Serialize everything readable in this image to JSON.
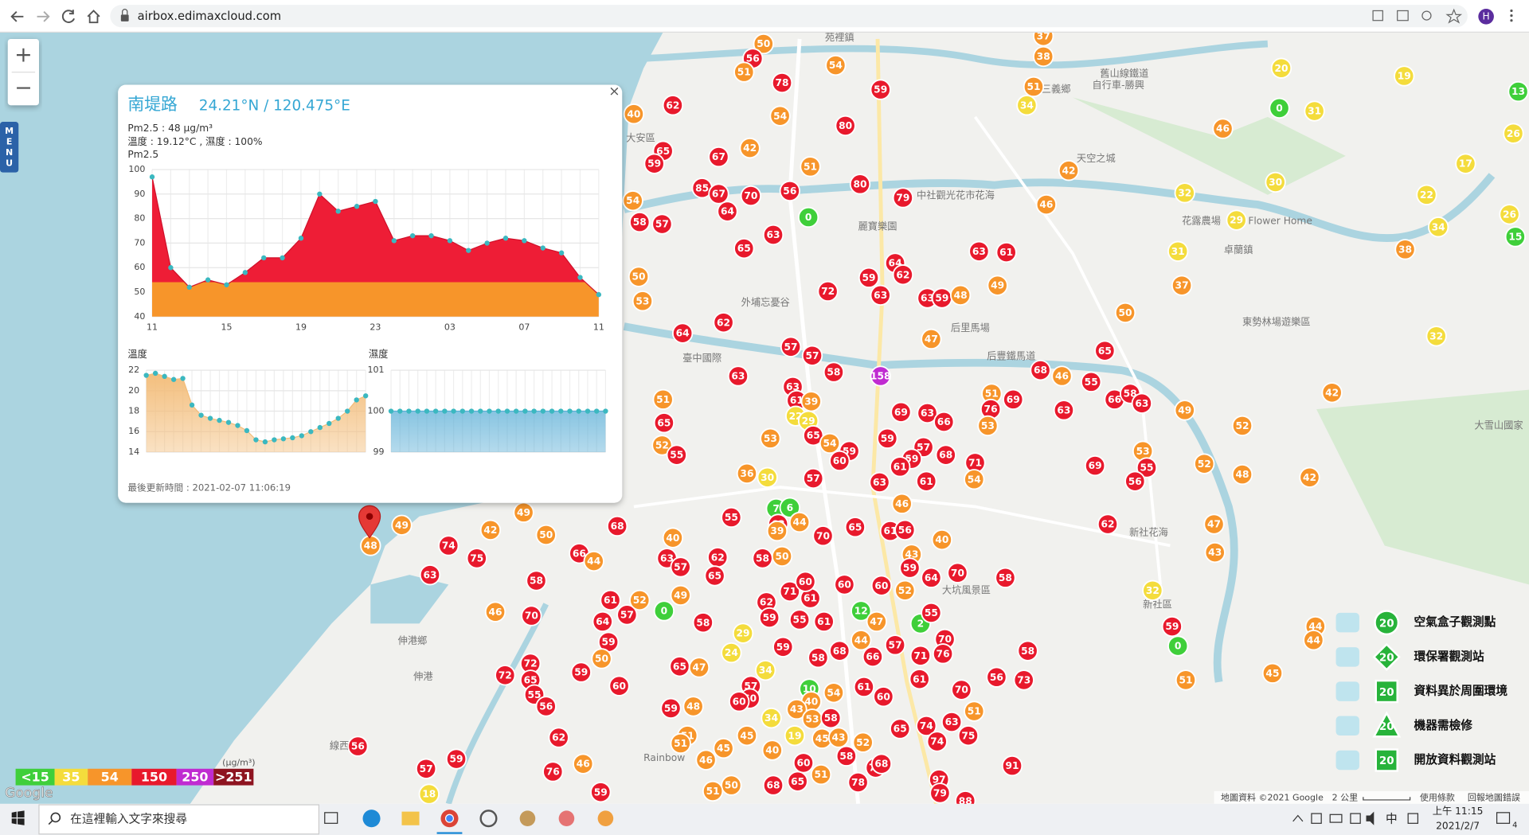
{
  "browser": {
    "url": "airbox.edimaxcloud.com",
    "avatar": "H"
  },
  "map": {
    "zoom_in": "+",
    "zoom_out": "−",
    "menu": "MENU",
    "logo": "Google",
    "attribution": "地圖資料 ©2021 Google",
    "distance": "2 公里",
    "terms": "使用條款",
    "report": "回報地圖錯誤",
    "places": [
      "苑裡鎮",
      "大安區",
      "麗寶樂園",
      "中社觀光花市花海",
      "外埔忘憂谷",
      "后里馬場",
      "后豐鐵馬道",
      "新社花海",
      "大坑風景區",
      "伸港鄉",
      "伸港",
      "線西",
      "Rainbow",
      "卓蘭鎮",
      "東勢林場遊樂區",
      "大雪山國家",
      "舊山線鐵道",
      "自行車-勝興",
      "三義鄉",
      "天空之城",
      "花露農場",
      "Flower Home",
      "新社區",
      "臺中國際"
    ],
    "scale": {
      "unit": "(μg/m³)",
      "levels": [
        {
          "value": 15,
          "label": "<15",
          "color": "#3fcf3a"
        },
        {
          "value": 35,
          "label": "35",
          "color": "#f4dc3c"
        },
        {
          "value": 54,
          "label": "54",
          "color": "#f7952a"
        },
        {
          "value": 150,
          "label": "150",
          "color": "#e8192c"
        },
        {
          "value": 250,
          "label": "250",
          "color": "#c02bd1"
        },
        {
          "value": 251,
          "label": ">251",
          "color": "#8e1420"
        }
      ]
    },
    "legend_icon": "20",
    "legend": [
      "空氣盒子觀測點",
      "環保署觀測站",
      "資料異於周圍環境",
      "機器需檢修",
      "開放資料觀測站"
    ],
    "markers": [
      50,
      56,
      51,
      54,
      78,
      59,
      37,
      38,
      51,
      34,
      20,
      0,
      31,
      19,
      13,
      26,
      62,
      40,
      54,
      80,
      65,
      59,
      67,
      42,
      51,
      80,
      79,
      85,
      67,
      64,
      70,
      56,
      0,
      42,
      46,
      30,
      32,
      46,
      29,
      17,
      22,
      26,
      34,
      38,
      15,
      54,
      58,
      57,
      63,
      65,
      64,
      59,
      62,
      72,
      63,
      63,
      61,
      31,
      37,
      49,
      63,
      59,
      48,
      50,
      53,
      62,
      64,
      50,
      47,
      32,
      57,
      57,
      58,
      158,
      63,
      68,
      46,
      55,
      65,
      42,
      63,
      61,
      39,
      51,
      22,
      29,
      65,
      69,
      63,
      66,
      51,
      69,
      76,
      63,
      66,
      58,
      63,
      49,
      53,
      59,
      52,
      55,
      53,
      65,
      54,
      59,
      57,
      68,
      71,
      59,
      60,
      61,
      69,
      53,
      55,
      56,
      52,
      52,
      48,
      42,
      36,
      30,
      57,
      63,
      61,
      54,
      46,
      48,
      49,
      42,
      49,
      50,
      74,
      75,
      63,
      58,
      66,
      44,
      68,
      55,
      7,
      6,
      63,
      39,
      44,
      70,
      65,
      61,
      56,
      40,
      43,
      59,
      70,
      64,
      58,
      62,
      47,
      43,
      32,
      40,
      63,
      57,
      62,
      65,
      58,
      50,
      46,
      70,
      61,
      57,
      52,
      49,
      0,
      58,
      64,
      59,
      50,
      71,
      61,
      60,
      60,
      60,
      52,
      2,
      55,
      12,
      47,
      62,
      59,
      55,
      61,
      29,
      59,
      44,
      57,
      70,
      76,
      71,
      68,
      58,
      66,
      58,
      59,
      0,
      44,
      44,
      45,
      72,
      72,
      65,
      55,
      56,
      59,
      60,
      65,
      47,
      24,
      34,
      57,
      60,
      60,
      10,
      54,
      40,
      61,
      60,
      61,
      70,
      56,
      73,
      51,
      48,
      59,
      43,
      53,
      58,
      34,
      65,
      74,
      63,
      51,
      62,
      59,
      57,
      56,
      76,
      51,
      51,
      45,
      19,
      45,
      43,
      52,
      74,
      75,
      46,
      45,
      40,
      60,
      58,
      78,
      77,
      68,
      91,
      46,
      50,
      68,
      65,
      51,
      97,
      18,
      59,
      51,
      79,
      88
    ]
  },
  "popup": {
    "title": "南堤路",
    "coords": "24.21°N / 120.475°E",
    "close": "×",
    "pm_line": "Pm2.5 : 48 μg/m³",
    "weather_line": "溫度 : 19.12°C , 濕度 : 100%",
    "updated": "最後更新時間 : 2021-02-07 11:06:19"
  },
  "chart_data": [
    {
      "type": "area",
      "title": "Pm2.5",
      "categories": [
        "11",
        null,
        null,
        null,
        "15",
        null,
        null,
        null,
        "19",
        null,
        null,
        null,
        "23",
        null,
        null,
        null,
        "03",
        null,
        null,
        null,
        "07",
        null,
        null,
        null,
        "11"
      ],
      "values": [
        97,
        60,
        52,
        55,
        53,
        58,
        64,
        64,
        72,
        90,
        83,
        85,
        87,
        71,
        73,
        73,
        71,
        67,
        70,
        72,
        71,
        68,
        66,
        56,
        49
      ],
      "ylim": [
        40,
        100
      ],
      "yticks": [
        40,
        50,
        60,
        70,
        80,
        90,
        100
      ],
      "grid": true,
      "color": "#ee1d36",
      "low_color": "#f7952a",
      "marker_color": "#3bb8c0"
    },
    {
      "type": "area",
      "title": "溫度",
      "values": [
        21.5,
        21.7,
        21.4,
        21.1,
        21.2,
        18.6,
        17.6,
        17.3,
        17.1,
        16.9,
        16.6,
        16.1,
        15.2,
        15.0,
        15.2,
        15.3,
        15.4,
        15.6,
        16.0,
        16.4,
        16.8,
        17.3,
        18.0,
        19.1,
        19.5
      ],
      "ylim": [
        14,
        22
      ],
      "yticks": [
        14,
        16,
        18,
        20,
        22
      ],
      "grid": true,
      "color": "#f3bd7a",
      "marker_color": "#3bb8c0"
    },
    {
      "type": "area",
      "title": "濕度",
      "values": [
        100,
        100,
        100,
        100,
        100,
        100,
        100,
        100,
        100,
        100,
        100,
        100,
        100,
        100,
        100,
        100,
        100,
        100,
        100,
        100,
        100,
        100,
        100,
        100,
        100
      ],
      "ylim": [
        99,
        101
      ],
      "yticks": [
        99,
        100,
        101
      ],
      "grid": true,
      "color": "#5aaed6",
      "marker_color": "#3bb8c0"
    }
  ],
  "taskbar": {
    "search": "在這裡輸入文字來搜尋",
    "ime": "中",
    "time": "上午 11:15",
    "date": "2021/2/7",
    "notifications": "4"
  }
}
